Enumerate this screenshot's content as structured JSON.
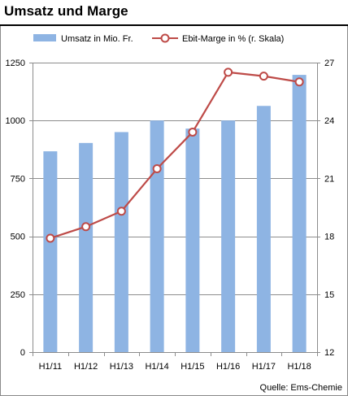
{
  "title": "Umsatz und Marge",
  "source": "Quelle: Ems-Chemie",
  "chart_data": {
    "type": "bar",
    "categories": [
      "H1/11",
      "H1/12",
      "H1/13",
      "H1/14",
      "H1/15",
      "H1/16",
      "H1/17",
      "H1/18"
    ],
    "series": [
      {
        "name": "Umsatz in Mio. Fr.",
        "type": "bar",
        "axis": "left",
        "color": "#8eb4e3",
        "values": [
          867,
          903,
          950,
          1000,
          965,
          1000,
          1063,
          1197
        ]
      },
      {
        "name": "Ebit-Marge in % (r. Skala)",
        "type": "line",
        "axis": "right",
        "color": "#be4b48",
        "values": [
          17.9,
          18.5,
          19.3,
          21.5,
          23.4,
          26.5,
          26.3,
          26.0
        ]
      }
    ],
    "y_left": {
      "min": 0,
      "max": 1250,
      "ticks": [
        0,
        250,
        500,
        750,
        1000,
        1250
      ]
    },
    "y_right": {
      "min": 12,
      "max": 27,
      "ticks": [
        12,
        15,
        18,
        21,
        24,
        27
      ]
    },
    "grid": "horizontal",
    "legend_position": "top"
  }
}
